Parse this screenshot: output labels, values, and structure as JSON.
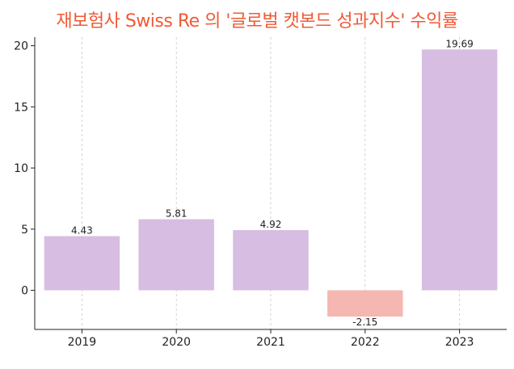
{
  "chart_data": {
    "type": "bar",
    "title": "재보험사 Swiss Re 의 '글로벌 캣본드 성과지수' 수익률",
    "xlabel": "",
    "ylabel": "",
    "categories": [
      "2019",
      "2020",
      "2021",
      "2022",
      "2023"
    ],
    "values": [
      4.43,
      5.81,
      4.92,
      -2.15,
      19.69
    ],
    "value_labels": [
      "4.43",
      "5.81",
      "4.92",
      "-2.15",
      "19.69"
    ],
    "ylim": [
      -3.2,
      20.7
    ],
    "yticks": [
      0,
      5,
      10,
      15,
      20
    ],
    "ytick_labels": [
      "0",
      "5",
      "10",
      "15",
      "20"
    ],
    "grid": "vertical dashed",
    "legend": "none",
    "colors": {
      "positive": "#d7bde2",
      "negative": "#f5b7b1",
      "title": "#f05a35"
    }
  }
}
